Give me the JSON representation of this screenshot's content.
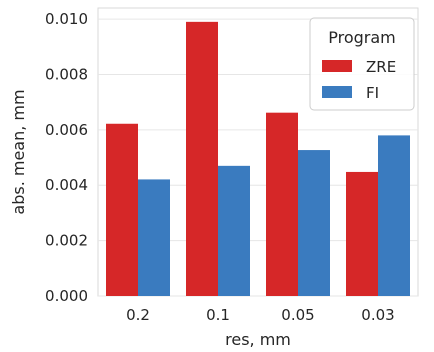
{
  "chart_data": {
    "type": "bar",
    "title": "",
    "xlabel": "res, mm",
    "ylabel": "abs. mean, mm",
    "categories": [
      "0.2",
      "0.1",
      "0.05",
      "0.03"
    ],
    "ylim": [
      0,
      0.0104
    ],
    "yticks": [
      "0.000",
      "0.002",
      "0.004",
      "0.006",
      "0.008",
      "0.010"
    ],
    "ytick_values": [
      0,
      0.002,
      0.004,
      0.006,
      0.008,
      0.01
    ],
    "grid": true,
    "legend": {
      "title": "Program",
      "placement": "top-right"
    },
    "series": [
      {
        "name": "ZRE",
        "color": "#d62728",
        "values": [
          0.00622,
          0.0099,
          0.00662,
          0.00448
        ]
      },
      {
        "name": "FI",
        "color": "#3a7bbf",
        "values": [
          0.00421,
          0.0047,
          0.00527,
          0.0058
        ]
      }
    ]
  }
}
